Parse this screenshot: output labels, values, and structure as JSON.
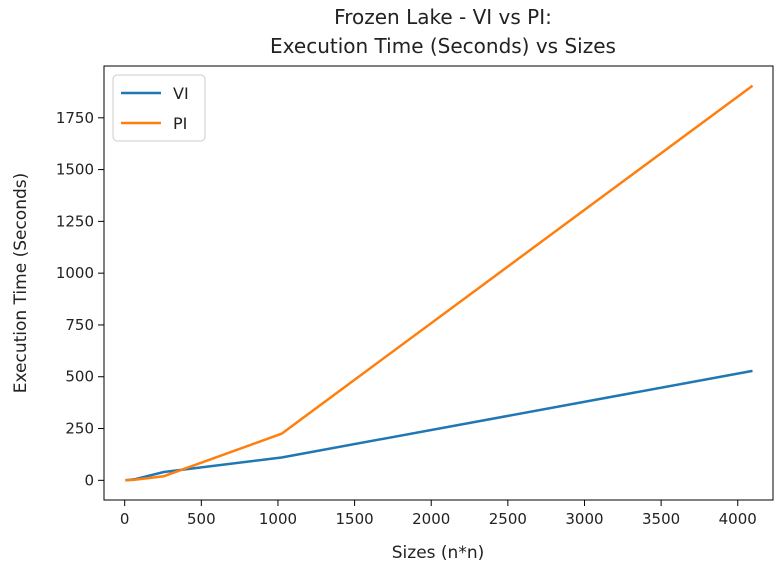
{
  "chart_data": {
    "type": "line",
    "title": "Frozen Lake - VI vs PI:",
    "subtitle": "Execution Time (Seconds) vs Sizes",
    "xlabel": "Sizes (n*n)",
    "ylabel": "Execution Time (Seconds)",
    "xlim": [
      -135,
      4230
    ],
    "ylim": [
      -95,
      2000
    ],
    "xticks": [
      0,
      500,
      1000,
      1500,
      2000,
      2500,
      3000,
      3500,
      4000
    ],
    "yticks": [
      0,
      250,
      500,
      750,
      1000,
      1250,
      1500,
      1750
    ],
    "grid": false,
    "legend_position": "top-left",
    "series": [
      {
        "name": "VI",
        "color": "#1f77b4",
        "x": [
          4,
          16,
          64,
          256,
          1024,
          4096
        ],
        "y": [
          0,
          1,
          5,
          40,
          110,
          528
        ]
      },
      {
        "name": "PI",
        "color": "#ff7f0e",
        "x": [
          4,
          16,
          64,
          256,
          1024,
          4096
        ],
        "y": [
          0,
          1,
          3,
          20,
          225,
          1905
        ]
      }
    ]
  }
}
